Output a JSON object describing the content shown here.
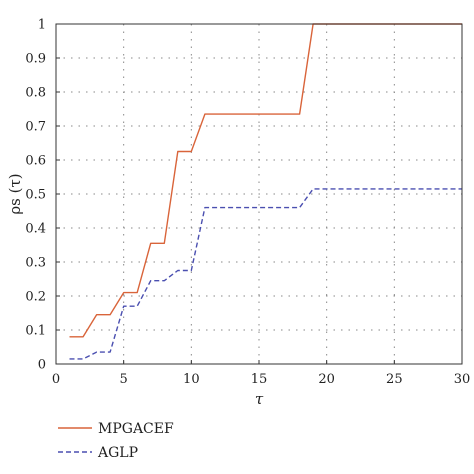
{
  "chart_data": {
    "type": "line",
    "title": "",
    "xlabel": "τ",
    "ylabel": "ρs (τ)",
    "xlim": [
      0,
      30
    ],
    "ylim": [
      0,
      1
    ],
    "xticks": [
      "0",
      "5",
      "10",
      "15",
      "20",
      "25",
      "30"
    ],
    "yticks": [
      "0",
      "0.1",
      "0.2",
      "0.3",
      "0.4",
      "0.5",
      "0.6",
      "0.7",
      "0.8",
      "0.9",
      "1"
    ],
    "grid": true,
    "grid_style": "dotted",
    "legend_position": "bottom-left",
    "series": [
      {
        "name": "MPGACEF",
        "color": "#d9643a",
        "dash": "solid",
        "x": [
          1,
          2,
          3,
          4,
          5,
          6,
          7,
          8,
          9,
          10,
          11,
          12,
          13,
          14,
          15,
          16,
          17,
          18,
          19,
          20,
          21,
          22,
          23,
          24,
          25,
          26,
          27,
          28,
          29,
          30
        ],
        "y": [
          0.08,
          0.08,
          0.145,
          0.145,
          0.21,
          0.21,
          0.355,
          0.355,
          0.625,
          0.625,
          0.735,
          0.735,
          0.735,
          0.735,
          0.735,
          0.735,
          0.735,
          0.735,
          1.0,
          1.0,
          1.0,
          1.0,
          1.0,
          1.0,
          1.0,
          1.0,
          1.0,
          1.0,
          1.0,
          1.0
        ]
      },
      {
        "name": "AGLP",
        "color": "#4a4fb0",
        "dash": "dashed",
        "x": [
          1,
          2,
          3,
          4,
          5,
          6,
          7,
          8,
          9,
          10,
          11,
          12,
          13,
          14,
          15,
          16,
          17,
          18,
          19,
          20,
          21,
          22,
          23,
          24,
          25,
          26,
          27,
          28,
          29,
          30
        ],
        "y": [
          0.015,
          0.015,
          0.035,
          0.035,
          0.17,
          0.17,
          0.245,
          0.245,
          0.275,
          0.275,
          0.46,
          0.46,
          0.46,
          0.46,
          0.46,
          0.46,
          0.46,
          0.46,
          0.515,
          0.515,
          0.515,
          0.515,
          0.515,
          0.515,
          0.515,
          0.515,
          0.515,
          0.515,
          0.515,
          0.515
        ]
      }
    ]
  }
}
